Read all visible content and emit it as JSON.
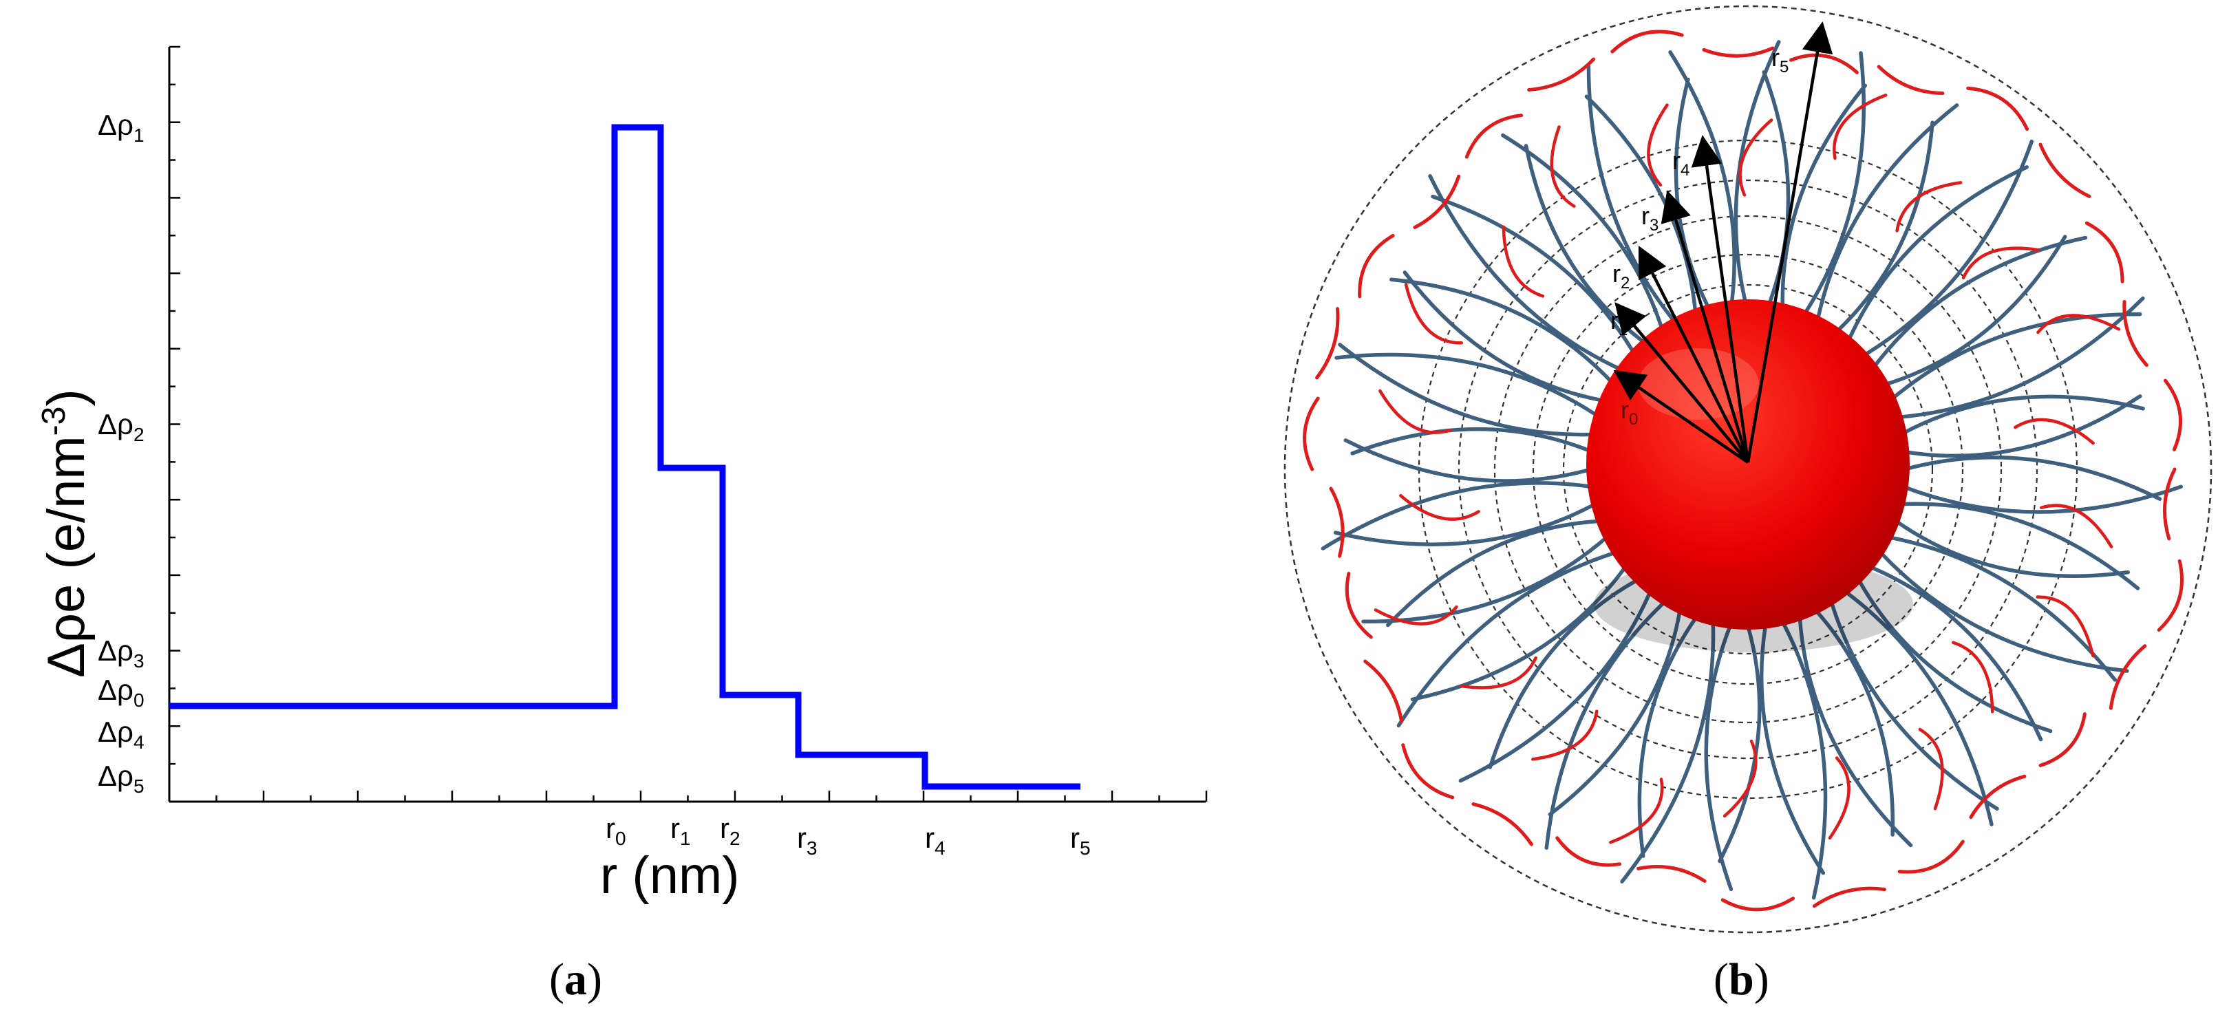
{
  "panels": {
    "a": {
      "caption_open": "(",
      "caption_letter": "a",
      "caption_close": ")",
      "chart_data": {
        "type": "line",
        "style": "step",
        "color": "#0000ff",
        "xlabel": "r (nm)",
        "ylabel": "Δρe (e/nm",
        "ylabel_exp": "-3",
        "ylabel_close": ")",
        "x_ticks": [
          {
            "base": "r",
            "sub": "0"
          },
          {
            "base": "r",
            "sub": "1"
          },
          {
            "base": "r",
            "sub": "2"
          },
          {
            "base": "r",
            "sub": "3"
          },
          {
            "base": "r",
            "sub": "4"
          },
          {
            "base": "r",
            "sub": "5"
          }
        ],
        "y_ticks": [
          {
            "base": "Δρ",
            "sub": "1"
          },
          {
            "base": "Δρ",
            "sub": "2"
          },
          {
            "base": "Δρ",
            "sub": "3"
          },
          {
            "base": "Δρ",
            "sub": "0"
          },
          {
            "base": "Δρ",
            "sub": "4"
          },
          {
            "base": "Δρ",
            "sub": "5"
          }
        ],
        "steps": [
          {
            "from": "0",
            "to": "r0",
            "level": "Δρ0"
          },
          {
            "from": "r0",
            "to": "r1",
            "level": "Δρ1"
          },
          {
            "from": "r1",
            "to": "r2",
            "level": "Δρ2"
          },
          {
            "from": "r2",
            "to": "r3",
            "level": "Δρ3"
          },
          {
            "from": "r3",
            "to": "r4",
            "level": "Δρ4"
          },
          {
            "from": "r4",
            "to": "r5",
            "level": "Δρ5"
          }
        ]
      }
    },
    "b": {
      "caption_open": "(",
      "caption_letter": "b",
      "caption_close": ")",
      "core_color": "#e60000",
      "chain_color": "#3f5f7f",
      "corona_color": "#e01b1b",
      "radius_labels": [
        {
          "base": "r",
          "sub": "0"
        },
        {
          "base": "r",
          "sub": "1"
        },
        {
          "base": "r",
          "sub": "2"
        },
        {
          "base": "r",
          "sub": "3"
        },
        {
          "base": "r",
          "sub": "4"
        },
        {
          "base": "r",
          "sub": "5"
        }
      ]
    }
  }
}
